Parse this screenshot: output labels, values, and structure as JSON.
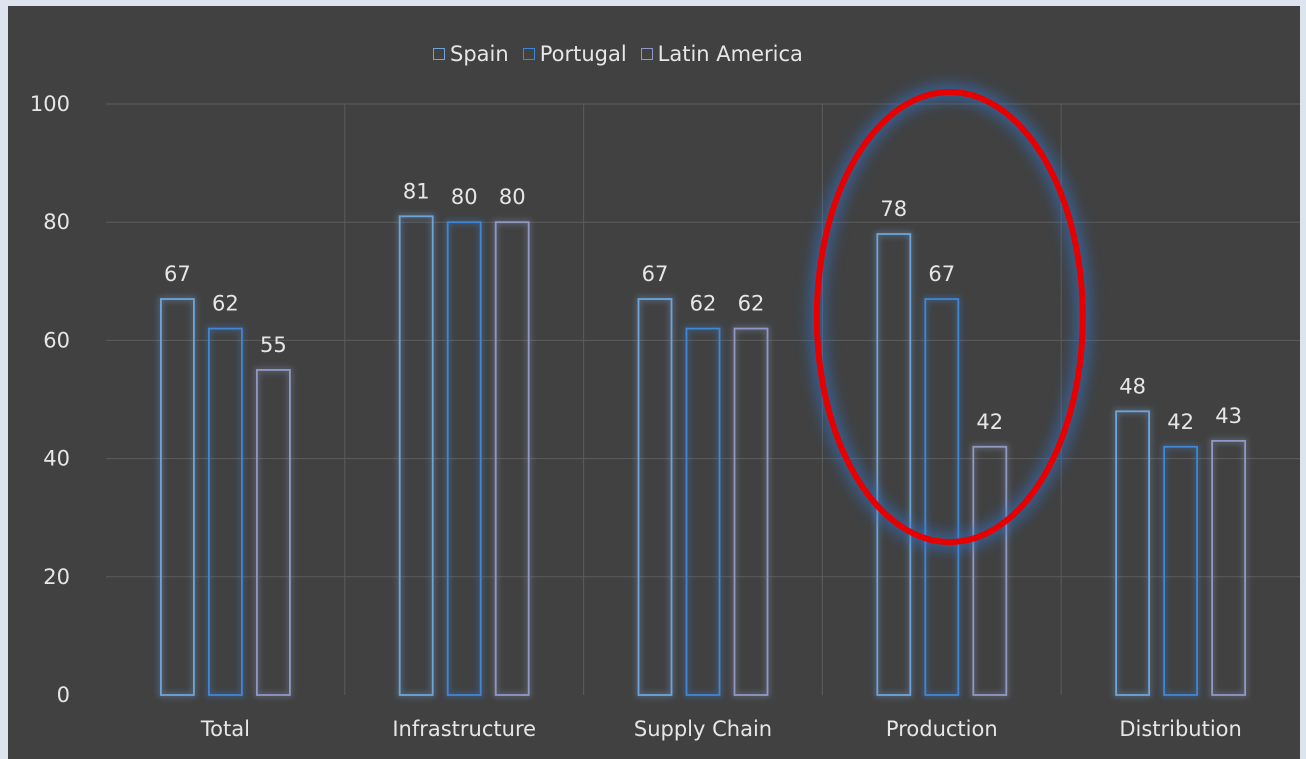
{
  "chart_data": {
    "type": "bar",
    "categories": [
      "Total",
      "Infrastructure",
      "Supply Chain",
      "Production",
      "Distribution"
    ],
    "series": [
      {
        "name": "Spain",
        "values": [
          67,
          81,
          67,
          78,
          48
        ],
        "labels": [
          "67",
          "81",
          "67",
          "78",
          "48"
        ]
      },
      {
        "name": "Portugal",
        "values": [
          62,
          80,
          62,
          67,
          42
        ],
        "labels": [
          "62",
          "80",
          "62",
          "67",
          "42"
        ]
      },
      {
        "name": "Latin America",
        "values": [
          55,
          80,
          62,
          42,
          43
        ],
        "labels": [
          "55",
          "80",
          "62",
          "42",
          "43"
        ]
      }
    ],
    "ylim": [
      0,
      100
    ],
    "yticks": [
      "0",
      "20",
      "40",
      "60",
      "80",
      "100"
    ],
    "ytick_values": [
      0,
      20,
      40,
      60,
      80,
      100
    ],
    "grid": true,
    "legend_position": "top-center",
    "highlight": {
      "category": "Production",
      "shape": "ellipse",
      "color": "#e60000"
    }
  },
  "colors": {
    "Spain": "#6fa4d8",
    "Portugal": "#3f86d6",
    "Latin America": "#8f99c4",
    "background": "#414141",
    "grid": "#5c5c5c",
    "text": "#e6e6e6"
  }
}
